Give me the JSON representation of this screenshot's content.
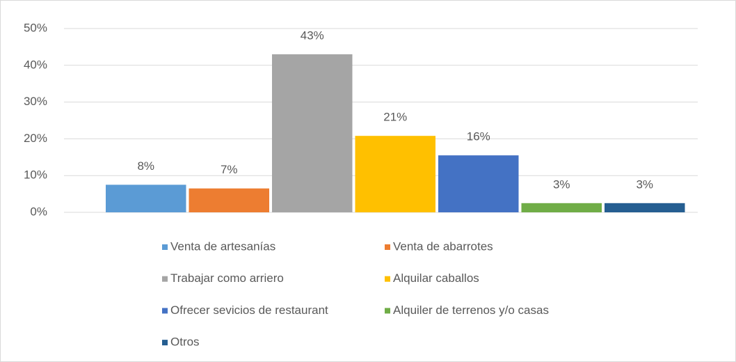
{
  "chart_data": {
    "type": "bar",
    "series": [
      {
        "name": "Venta de artesanías",
        "color": "#5b9bd5",
        "values": [
          7.5
        ],
        "value_labels": [
          "8%"
        ]
      },
      {
        "name": "Venta de abarrotes",
        "color": "#ed7d31",
        "values": [
          6.5
        ],
        "value_labels": [
          "7%"
        ]
      },
      {
        "name": "Trabajar como arriero",
        "color": "#a5a5a5",
        "values": [
          43
        ],
        "value_labels": [
          "43%"
        ]
      },
      {
        "name": "Alquilar caballos",
        "color": "#ffc000",
        "values": [
          20.8
        ],
        "value_labels": [
          "21%"
        ]
      },
      {
        "name": "Ofrecer sevicios de restaurant",
        "color": "#4472c4",
        "values": [
          15.5
        ],
        "value_labels": [
          "16%"
        ]
      },
      {
        "name": "Alquiler de terrenos y/o casas",
        "color": "#70ad47",
        "values": [
          2.5
        ],
        "value_labels": [
          "3%"
        ]
      },
      {
        "name": "Otros",
        "color": "#255e91",
        "values": [
          2.5
        ],
        "value_labels": [
          "3%"
        ]
      }
    ],
    "ylim": [
      0,
      50
    ],
    "yticks": [
      {
        "value": 0,
        "label": "0%"
      },
      {
        "value": 10,
        "label": "10%"
      },
      {
        "value": 20,
        "label": "20%"
      },
      {
        "value": 30,
        "label": "30%"
      },
      {
        "value": 40,
        "label": "40%"
      },
      {
        "value": 50,
        "label": "50%"
      }
    ],
    "grid": true
  }
}
